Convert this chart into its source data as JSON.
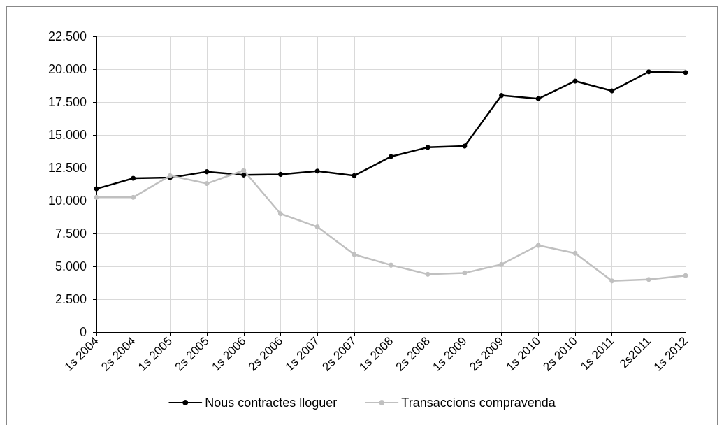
{
  "chart_data": {
    "type": "line",
    "categories": [
      "1s 2004",
      "2s 2004",
      "1s 2005",
      "2s 2005",
      "1s 2006",
      "2s 2006",
      "1s 2007",
      "2s 2007",
      "1s 2008",
      "2s 2008",
      "1s 2009",
      "2s 2009",
      "1s 2010",
      "2s 2010",
      "1s 2011",
      "2s2011",
      "1s 2012"
    ],
    "series": [
      {
        "name": "Nous contractes lloguer",
        "color": "#000000",
        "values": [
          10900,
          11700,
          11750,
          12200,
          11950,
          12000,
          12250,
          11900,
          13350,
          14050,
          14150,
          18000,
          17750,
          19100,
          18350,
          19800,
          19750
        ]
      },
      {
        "name": "Transaccions compravenda",
        "color": "#c0c0c0",
        "values": [
          10250,
          10250,
          11900,
          11300,
          12300,
          9000,
          8000,
          5900,
          5100,
          4400,
          4500,
          5150,
          6600,
          6000,
          3900,
          4000,
          4300
        ]
      }
    ],
    "ylim": [
      0,
      22500
    ],
    "yticks": [
      0,
      {
        "value": 2500,
        "label": "2.500"
      },
      {
        "value": 5000,
        "label": "5.000"
      },
      {
        "value": 7500,
        "label": "7.500"
      },
      {
        "value": 10000,
        "label": "10.000"
      },
      {
        "value": 12500,
        "label": "12.500"
      },
      {
        "value": 15000,
        "label": "15.000"
      },
      {
        "value": 17500,
        "label": "17.500"
      },
      {
        "value": 20000,
        "label": "20.000"
      },
      {
        "value": 22500,
        "label": "22.500"
      }
    ],
    "grid": true,
    "legend": "bottom",
    "marker": "circle",
    "line_style": "solid"
  }
}
